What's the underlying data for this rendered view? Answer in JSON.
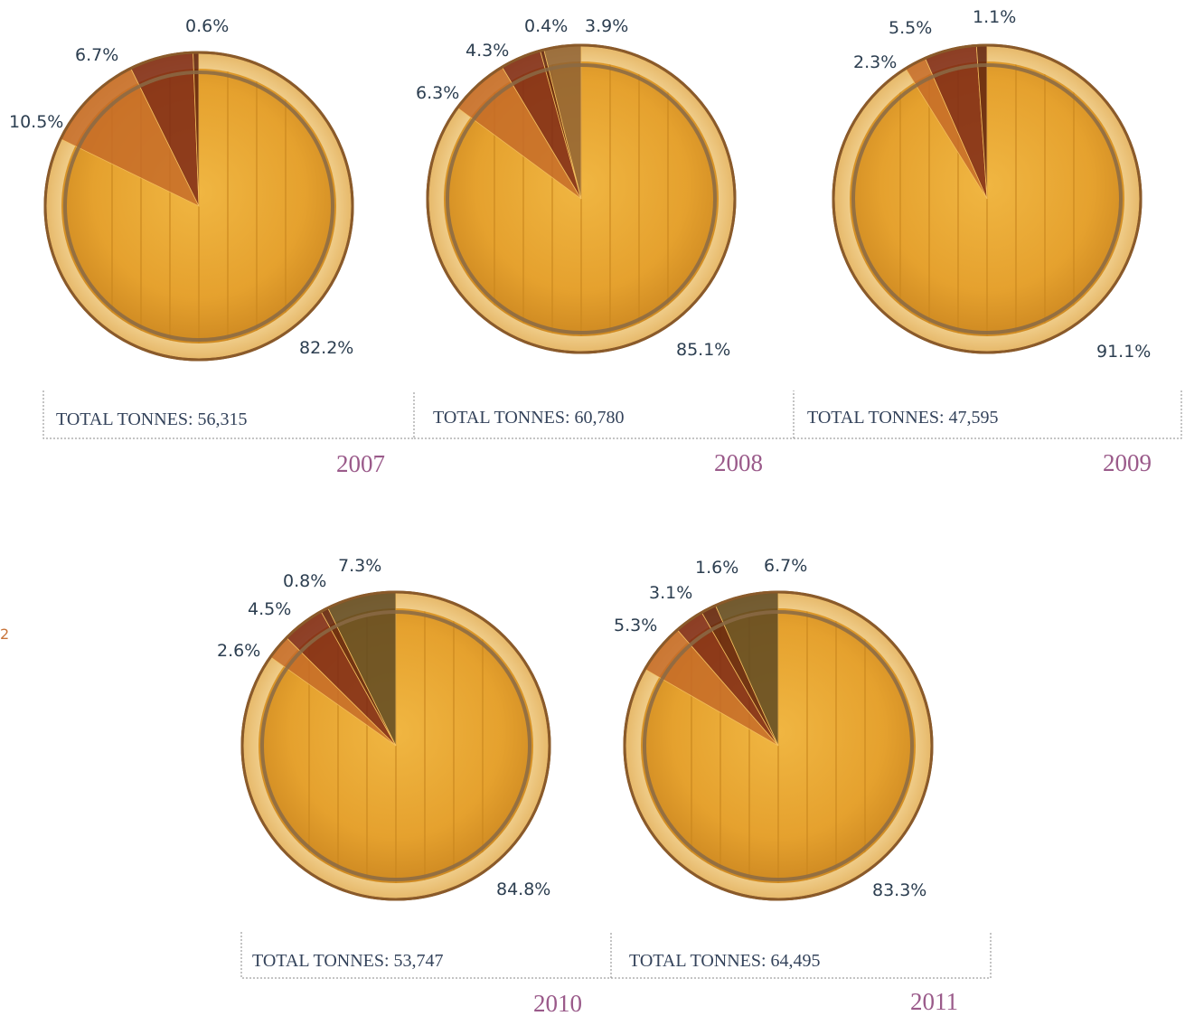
{
  "chart_data": [
    {
      "type": "pie",
      "year": "2007",
      "total_label": "TOTAL TONNES: 56,315",
      "slices": [
        {
          "value": 82.2,
          "label": "82.2%"
        },
        {
          "value": 10.5,
          "label": "10.5%"
        },
        {
          "value": 6.7,
          "label": "6.7%"
        },
        {
          "value": 0.6,
          "label": "0.6%"
        }
      ]
    },
    {
      "type": "pie",
      "year": "2008",
      "total_label": "TOTAL TONNES: 60,780",
      "slices": [
        {
          "value": 85.1,
          "label": "85.1%"
        },
        {
          "value": 6.3,
          "label": "6.3%"
        },
        {
          "value": 4.3,
          "label": "4.3%"
        },
        {
          "value": 0.4,
          "label": "0.4%"
        },
        {
          "value": 3.9,
          "label": "3.9%"
        }
      ]
    },
    {
      "type": "pie",
      "year": "2009",
      "total_label": "TOTAL TONNES: 47,595",
      "slices": [
        {
          "value": 91.1,
          "label": "91.1%"
        },
        {
          "value": 2.3,
          "label": "2.3%"
        },
        {
          "value": 5.5,
          "label": "5.5%"
        },
        {
          "value": 1.1,
          "label": "1.1%"
        }
      ]
    },
    {
      "type": "pie",
      "year": "2010",
      "total_label": "TOTAL TONNES: 53,747",
      "slices": [
        {
          "value": 84.8,
          "label": "84.8%"
        },
        {
          "value": 2.6,
          "label": "2.6%"
        },
        {
          "value": 4.5,
          "label": "4.5%"
        },
        {
          "value": 0.8,
          "label": "0.8%"
        },
        {
          "value": 7.3,
          "label": "7.3%"
        }
      ]
    },
    {
      "type": "pie",
      "year": "2011",
      "total_label": "TOTAL TONNES: 64,495",
      "slices": [
        {
          "value": 83.3,
          "label": "83.3%"
        },
        {
          "value": 5.3,
          "label": "5.3%"
        },
        {
          "value": 3.1,
          "label": "3.1%"
        },
        {
          "value": 1.6,
          "label": "1.6%"
        },
        {
          "value": 6.7,
          "label": "6.7%"
        }
      ]
    }
  ],
  "colors": {
    "wood_main": "#e7a532",
    "wood_dark": "#c9861f",
    "rim_light": "#f1cf8c",
    "rim_outline": "#8a5a2a",
    "hoop": "#8a6a45",
    "slice_orange": "#c56a28",
    "slice_red": "#7a2415",
    "slice_thin": "#5a1c0c",
    "slice_olive": "#5a4622",
    "text": "#2c3e50",
    "year": "#9a5a8a"
  },
  "stray_text": "2"
}
